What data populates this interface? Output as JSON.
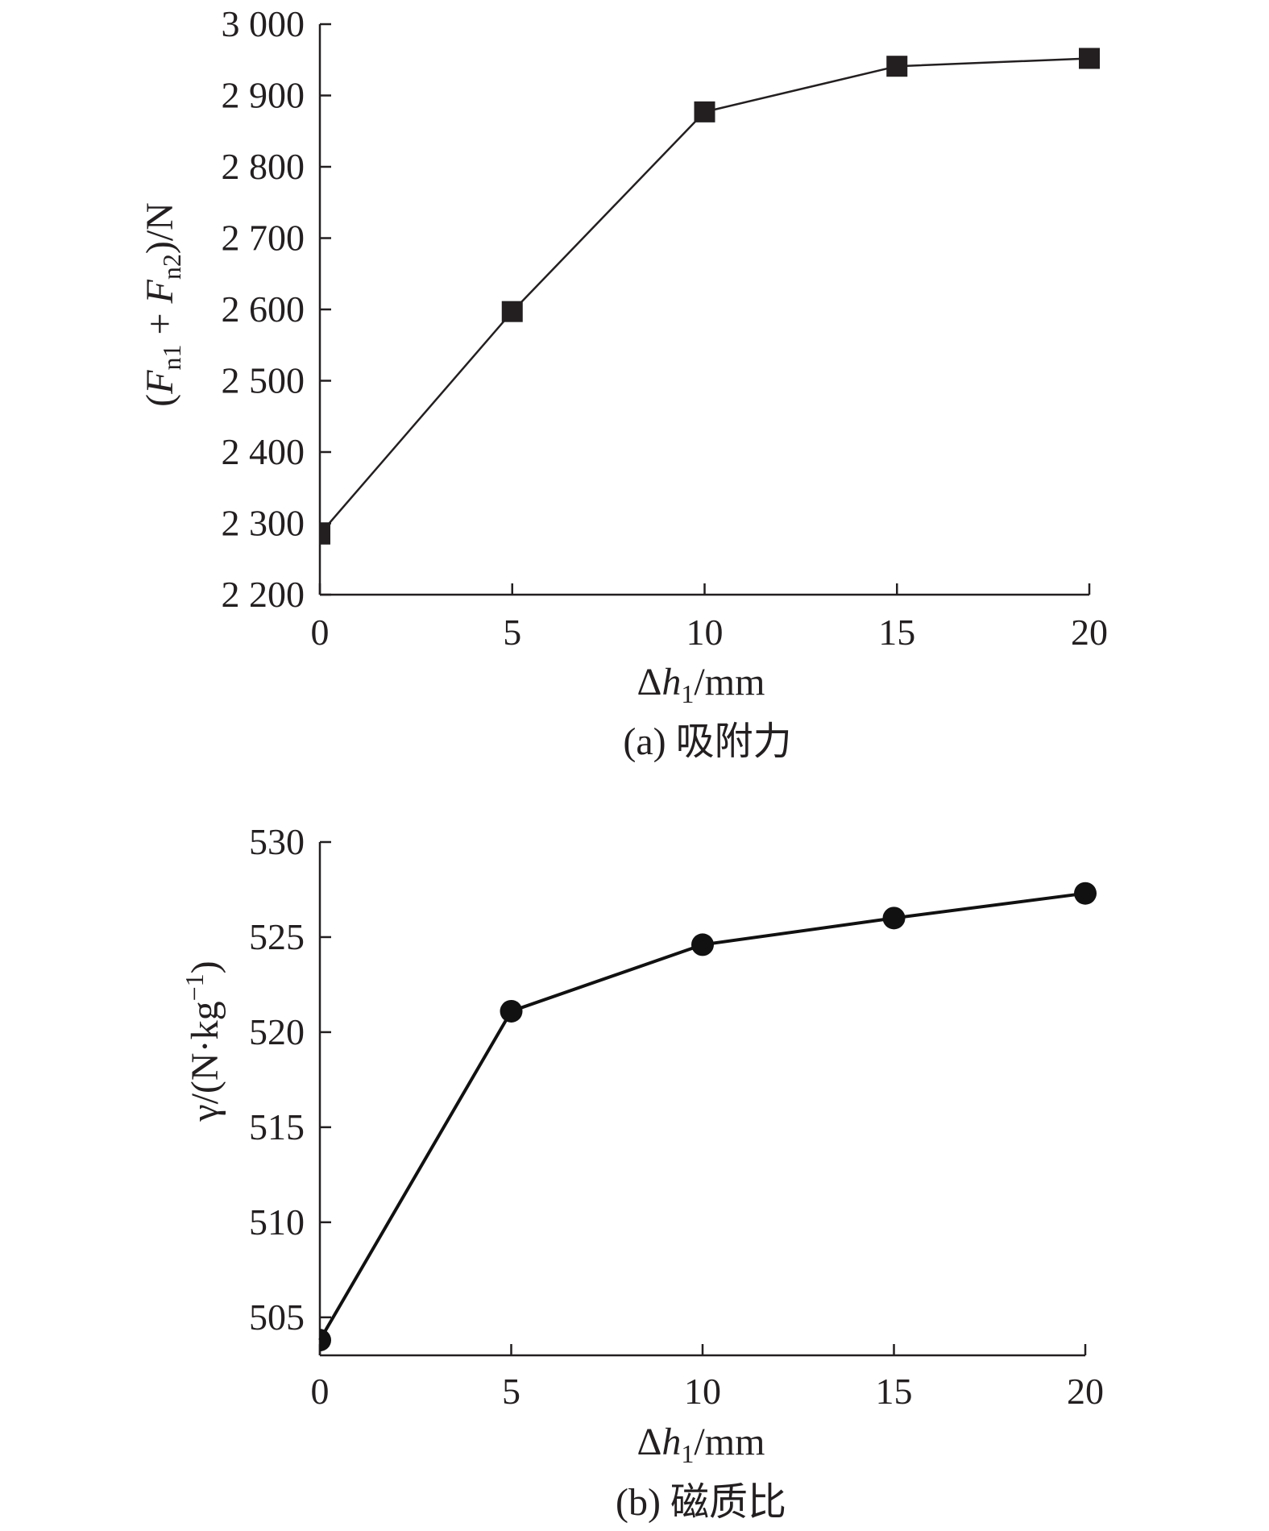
{
  "chart_data": [
    {
      "type": "line",
      "caption": "(a) 吸附力",
      "xlabel": {
        "delta": "Δ",
        "var": "h",
        "sub": "1",
        "unit": "/mm"
      },
      "ylabel": {
        "open": "(",
        "f1": "F",
        "f1_sub": "n1",
        "plus": " + ",
        "f2": "F",
        "f2_sub": "n2",
        "close": ")/N"
      },
      "x": [
        0,
        5,
        10,
        15,
        20
      ],
      "y": [
        2285,
        2597,
        2877,
        2941,
        2952
      ],
      "xlim": [
        0,
        20
      ],
      "ylim": [
        2200,
        3000
      ],
      "xticks": [
        0,
        5,
        10,
        15,
        20
      ],
      "yticks": [
        2200,
        2300,
        2400,
        2500,
        2600,
        2700,
        2800,
        2900,
        3000
      ],
      "xtick_labels": [
        "0",
        "5",
        "10",
        "15",
        "20"
      ],
      "ytick_labels": [
        "2 200",
        "2 300",
        "2 400",
        "2 500",
        "2 600",
        "2 700",
        "2 800",
        "2 900",
        "3 000"
      ],
      "marker": "square",
      "grid": false,
      "color": "#231f20"
    },
    {
      "type": "line",
      "caption": "(b) 磁质比",
      "xlabel": {
        "delta": "Δ",
        "var": "h",
        "sub": "1",
        "unit": "/mm"
      },
      "ylabel": {
        "text": "γ/(N·kg",
        "sup": "−1",
        "close": ")"
      },
      "x": [
        0,
        5,
        10,
        15,
        20
      ],
      "y": [
        503.8,
        521.1,
        524.6,
        526.0,
        527.3
      ],
      "xlim": [
        0,
        20
      ],
      "ylim": [
        503,
        530
      ],
      "xticks": [
        0,
        5,
        10,
        15,
        20
      ],
      "yticks": [
        505,
        510,
        515,
        520,
        525,
        530
      ],
      "xtick_labels": [
        "0",
        "5",
        "10",
        "15",
        "20"
      ],
      "ytick_labels": [
        "505",
        "510",
        "515",
        "520",
        "525",
        "530"
      ],
      "marker": "circle",
      "grid": false,
      "color": "#111111"
    }
  ]
}
